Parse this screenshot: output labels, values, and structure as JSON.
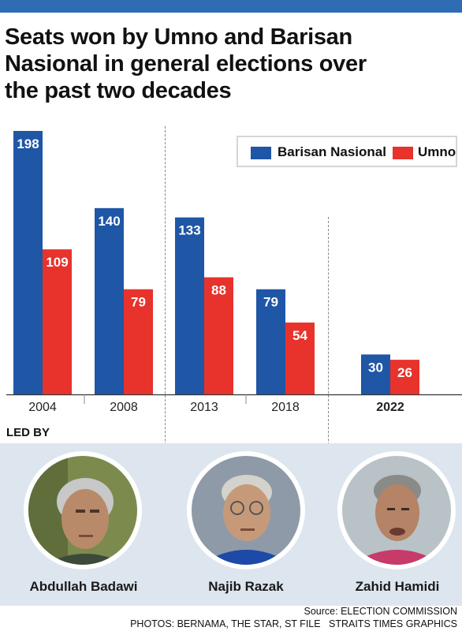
{
  "title_lines": [
    "Seats won by Umno and Barisan",
    "Nasional in general elections over",
    "the past two decades"
  ],
  "legend": [
    {
      "label": "Barisan Nasional",
      "color": "#1f56a6"
    },
    {
      "label": "Umno",
      "color": "#e8322c"
    }
  ],
  "chart_data": {
    "type": "bar",
    "categories": [
      "2004",
      "2008",
      "2013",
      "2018",
      "2022"
    ],
    "series": [
      {
        "name": "Barisan Nasional",
        "color": "#1f56a6",
        "values": [
          198,
          140,
          133,
          79,
          30
        ]
      },
      {
        "name": "Umno",
        "color": "#e8322c",
        "values": [
          109,
          79,
          88,
          54,
          26
        ]
      }
    ],
    "ylim": [
      0,
      198
    ],
    "bold_category": "2022",
    "legend_position": "top-right"
  },
  "led_by_label": "LED BY",
  "leaders": [
    {
      "name": "Abdullah Badawi",
      "image": "portrait-photo"
    },
    {
      "name": "Najib Razak",
      "image": "portrait-photo"
    },
    {
      "name": "Zahid Hamidi",
      "image": "portrait-photo"
    }
  ],
  "source": "Source: ELECTION COMMISSION",
  "credits": "PHOTOS: BERNAMA, THE STAR, ST FILE   STRAITS TIMES GRAPHICS"
}
